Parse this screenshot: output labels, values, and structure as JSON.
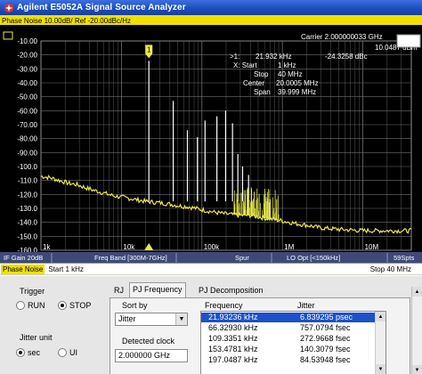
{
  "window": {
    "title": "Agilent E5052A Signal Source Analyzer"
  },
  "screen": {
    "header": "Phase Noise 10.00dB/ Ref -20.00dBc/Hz",
    "marker_header": {
      "carrier": "Carrier 2.000000033 GHz",
      "level": "10.0487 dBm"
    },
    "marker_readout": [
      {
        "label": ">1:",
        "value": "21.932 kHz",
        "extra": "-24.3258 dBc"
      },
      {
        "label": "X: Start",
        "value": "1 kHz",
        "extra": ""
      },
      {
        "label": "Stop",
        "value": "40 MHz",
        "extra": ""
      },
      {
        "label": "Center",
        "value": "20.0005 MHz",
        "extra": ""
      },
      {
        "label": "Span",
        "value": "39.999 MHz",
        "extra": ""
      }
    ],
    "marker_flag": "1",
    "status_bar": [
      "IF Gain 20dB",
      "Freq Band [300M-7GHz]",
      "Spur",
      "LO Opt [<150kHz]",
      "59Spts"
    ],
    "colors": {
      "trace": "#e8e84a",
      "grid": "#6f6f6f",
      "spur": "#ffffff",
      "text": "#ffffff",
      "status_bg": "#3d4a78"
    }
  },
  "measurement_bar": {
    "name": "Phase Noise",
    "start": "Start 1 kHz",
    "stop": "Stop 40 MHz"
  },
  "chart_data": {
    "type": "line",
    "title": "Phase Noise 10.00dB/ Ref -20.00dBc/Hz",
    "xscale": "log",
    "xlim": [
      1000,
      40000000
    ],
    "ylim": [
      -160,
      -10
    ],
    "y_ticks": [
      "-10.00",
      "-20.00",
      "-30.00",
      "-40.00",
      "-50.00",
      "-60.00",
      "-70.00",
      "-80.00",
      "-90.00",
      "-100.0",
      "-110.0",
      "-120.0",
      "-130.0",
      "-140.0",
      "-150.0",
      "-160.0"
    ],
    "x_ticks": [
      {
        "x": 1000,
        "label": "1k"
      },
      {
        "x": 10000,
        "label": "10k"
      },
      {
        "x": 100000,
        "label": "100k"
      },
      {
        "x": 1000000,
        "label": "1M"
      },
      {
        "x": 10000000,
        "label": "10M"
      }
    ],
    "grid": true,
    "noise_trace": [
      [
        1000,
        -107
      ],
      [
        1300,
        -108
      ],
      [
        1700,
        -110
      ],
      [
        2200,
        -112
      ],
      [
        2800,
        -113
      ],
      [
        3500,
        -115
      ],
      [
        4500,
        -117
      ],
      [
        6000,
        -119
      ],
      [
        8000,
        -121
      ],
      [
        10000,
        -122
      ],
      [
        13000,
        -123
      ],
      [
        16000,
        -124
      ],
      [
        20000,
        -125
      ],
      [
        30000,
        -126
      ],
      [
        40000,
        -127
      ],
      [
        50000,
        -128
      ],
      [
        70000,
        -129
      ],
      [
        100000,
        -131
      ],
      [
        150000,
        -133
      ],
      [
        200000,
        -134
      ],
      [
        300000,
        -135
      ],
      [
        400000,
        -135
      ],
      [
        600000,
        -137
      ],
      [
        800000,
        -138
      ],
      [
        1000000,
        -139
      ],
      [
        1500000,
        -141
      ],
      [
        2000000,
        -142
      ],
      [
        3000000,
        -144
      ],
      [
        5000000,
        -145
      ],
      [
        10000000,
        -146
      ],
      [
        20000000,
        -146
      ],
      [
        40000000,
        -146
      ]
    ],
    "spurs": [
      {
        "x": 21932,
        "y": -24.3
      },
      {
        "x": 44000,
        "y": -53
      },
      {
        "x": 66000,
        "y": -74
      },
      {
        "x": 88000,
        "y": -79
      },
      {
        "x": 109335,
        "y": -67
      },
      {
        "x": 153478,
        "y": -64
      },
      {
        "x": 197049,
        "y": -60
      },
      {
        "x": 240000,
        "y": -69
      },
      {
        "x": 280000,
        "y": -91
      },
      {
        "x": 320000,
        "y": -100
      },
      {
        "x": 380000,
        "y": -106
      }
    ]
  },
  "panel": {
    "trigger": {
      "label": "Trigger",
      "options": [
        "RUN",
        "STOP"
      ],
      "selected": "STOP"
    },
    "jitter_unit": {
      "label": "Jitter unit",
      "options": [
        "sec",
        "UI"
      ],
      "selected": "sec"
    },
    "tabs": [
      "RJ",
      "PJ Frequency",
      "PJ Decomposition"
    ],
    "active_tab": "PJ Frequency",
    "sort_by": {
      "label": "Sort by",
      "value": "Jitter"
    },
    "detected_clock": {
      "label": "Detected clock",
      "value": "2.000000 GHz"
    },
    "table": {
      "headers": [
        "Frequency",
        "Jitter"
      ],
      "rows": [
        [
          "21.93236 kHz",
          "6.839295 psec"
        ],
        [
          "66.32930 kHz",
          "757.0794 fsec"
        ],
        [
          "109.3351 kHz",
          "272.9668 fsec"
        ],
        [
          "153.4781 kHz",
          "140.3079 fsec"
        ],
        [
          "197.0487 kHz",
          "84.53948 fsec"
        ]
      ]
    }
  }
}
